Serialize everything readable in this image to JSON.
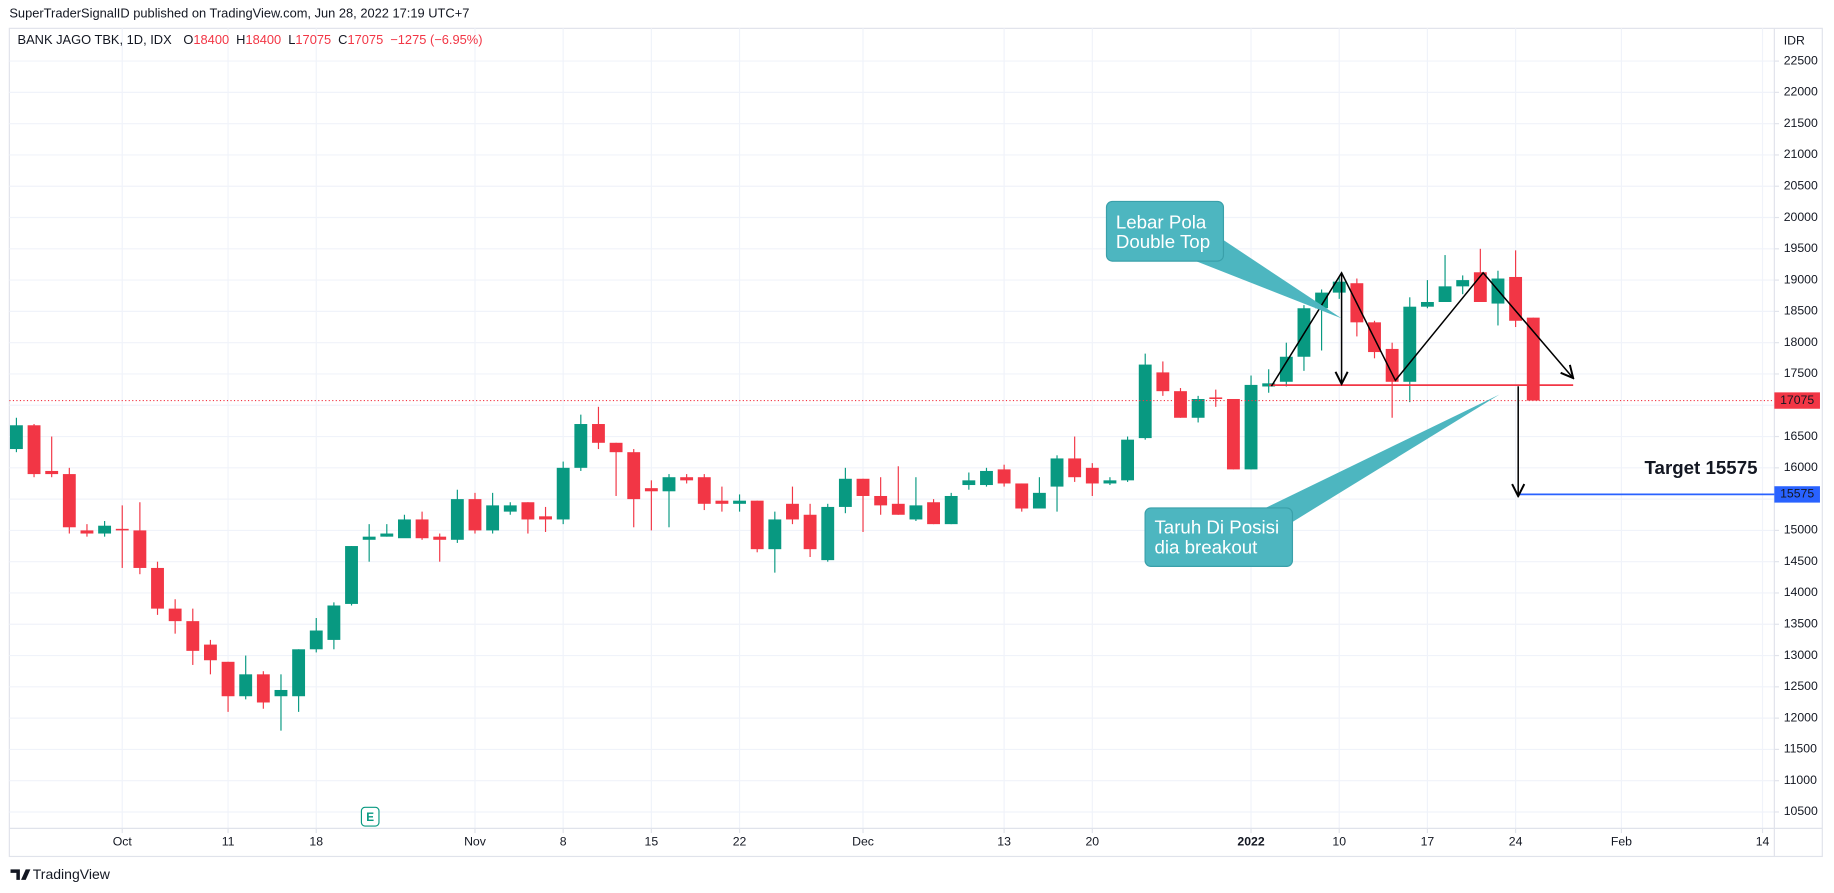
{
  "header": {
    "attribution": "SuperTraderSignalID published on TradingView.com, Jun 28, 2022 17:19 UTC+7",
    "footer_logo": "TradingView"
  },
  "chart_data": {
    "type": "candlestick",
    "title": "BANK JAGO TBK, 1D, IDX",
    "ohlc_legend": [
      {
        "key": "O",
        "value": "18400"
      },
      {
        "key": "H",
        "value": "18400"
      },
      {
        "key": "L",
        "value": "17075"
      },
      {
        "key": "C",
        "value": "17075"
      }
    ],
    "change": "−1275 (−6.95%)",
    "currency": "IDR",
    "earnings_marker": "E",
    "up_color": "#089981",
    "down_color": "#f23645",
    "categories": [
      null,
      null,
      null,
      null,
      null,
      null,
      null,
      null,
      null,
      null,
      null,
      null,
      null,
      null,
      null,
      null,
      null,
      null,
      null,
      null,
      null,
      null,
      null,
      null,
      null,
      null,
      null,
      null,
      null,
      null,
      null,
      null,
      null,
      null,
      null,
      null,
      null,
      null,
      null,
      null,
      null,
      null,
      null,
      null,
      null,
      null,
      null,
      null,
      null,
      null,
      null,
      null,
      null,
      null,
      null,
      null,
      null,
      null,
      null,
      null,
      null,
      null,
      null,
      null,
      null,
      null,
      null,
      null,
      null,
      null,
      null,
      null,
      null,
      null,
      null,
      null,
      null,
      null,
      null,
      null,
      null,
      null,
      null,
      null,
      null,
      null,
      null
    ],
    "open": [
      16300,
      16680,
      15950,
      15900,
      15000,
      14950,
      15025,
      15000,
      14400,
      13750,
      13550,
      13175,
      12900,
      12350,
      12700,
      12350,
      12350,
      13100,
      13250,
      13825,
      14850,
      14900,
      14875,
      15175,
      14900,
      14850,
      15500,
      15000,
      15300,
      15450,
      15225,
      15175,
      16000,
      16700,
      16400,
      16250,
      15675,
      15625,
      15850,
      15850,
      15475,
      15425,
      15475,
      14700,
      15425,
      15250,
      14525,
      15375,
      15825,
      15550,
      15425,
      15175,
      15450,
      15100,
      15725,
      15725,
      15975,
      15750,
      15350,
      15700,
      16150,
      16000,
      15750,
      15800,
      16475,
      17525,
      17225,
      16800,
      17125,
      17100,
      15975,
      17300,
      17375,
      17775,
      18550,
      18800,
      18950,
      18325,
      17900,
      17375,
      18575,
      18650,
      18900,
      19125,
      18625,
      19050,
      18400
    ],
    "high": [
      16800,
      16700,
      16500,
      16000,
      15100,
      15150,
      15400,
      15450,
      14500,
      13900,
      13750,
      13250,
      12900,
      13000,
      12750,
      12700,
      13100,
      13600,
      13850,
      14750,
      15100,
      15100,
      15250,
      15300,
      14950,
      15650,
      15600,
      15600,
      15450,
      15450,
      15375,
      16100,
      16850,
      16975,
      16400,
      16300,
      15800,
      15900,
      15900,
      15900,
      15700,
      15575,
      15475,
      15300,
      15700,
      15425,
      15425,
      16000,
      15825,
      15850,
      16025,
      15850,
      15500,
      15600,
      15925,
      16000,
      16050,
      15750,
      15850,
      16200,
      16500,
      16075,
      15850,
      16500,
      17825,
      17700,
      17275,
      17150,
      17250,
      17100,
      17475,
      17575,
      18000,
      18600,
      18850,
      19050,
      19025,
      18350,
      18000,
      18725,
      19000,
      19400,
      19075,
      19500,
      19150,
      19475,
      18400
    ],
    "low": [
      16250,
      15850,
      15850,
      14950,
      14900,
      14900,
      14400,
      14300,
      13650,
      13350,
      12850,
      12700,
      12100,
      12300,
      12150,
      11800,
      12100,
      13050,
      13100,
      13800,
      14500,
      14900,
      14900,
      14850,
      14500,
      14800,
      14950,
      14950,
      15250,
      14950,
      14975,
      15100,
      15950,
      16300,
      15550,
      15050,
      15000,
      15050,
      15750,
      15325,
      15300,
      15300,
      14650,
      14325,
      15100,
      14575,
      14500,
      15275,
      14975,
      15250,
      15250,
      15150,
      15100,
      15100,
      15650,
      15700,
      15700,
      15300,
      15350,
      15300,
      15775,
      15550,
      15725,
      15775,
      16450,
      17150,
      16800,
      16725,
      16975,
      15975,
      15975,
      17200,
      17300,
      17550,
      17875,
      18700,
      18100,
      17750,
      16800,
      17050,
      18550,
      18650,
      18775,
      18650,
      18275,
      18250,
      17075
    ],
    "close": [
      16680,
      15900,
      15900,
      15050,
      14950,
      15075,
      15000,
      14400,
      13750,
      13550,
      13075,
      12925,
      12350,
      12700,
      12250,
      12450,
      13100,
      13400,
      13800,
      14750,
      14900,
      14950,
      15175,
      14875,
      14850,
      15500,
      15000,
      15400,
      15400,
      15175,
      15175,
      16000,
      16700,
      16400,
      16250,
      15500,
      15625,
      15850,
      15800,
      15425,
      15425,
      15475,
      14700,
      15175,
      15175,
      14700,
      15375,
      15825,
      15550,
      15400,
      15250,
      15400,
      15100,
      15550,
      15800,
      15950,
      15750,
      15350,
      15600,
      16150,
      15850,
      15750,
      15800,
      16450,
      17650,
      17225,
      16800,
      17100,
      17100,
      15975,
      17325,
      17350,
      17775,
      18550,
      18800,
      18975,
      18325,
      17850,
      17375,
      18575,
      18650,
      18900,
      19000,
      18650,
      19025,
      18350,
      17075
    ],
    "xlim": [
      -0.4,
      99.67
    ],
    "xticks": [
      {
        "value": 6,
        "label": "Oct"
      },
      {
        "value": 12,
        "label": "11"
      },
      {
        "value": 17,
        "label": "18"
      },
      {
        "value": 26,
        "label": "Nov"
      },
      {
        "value": 31,
        "label": "8"
      },
      {
        "value": 36,
        "label": "15"
      },
      {
        "value": 41,
        "label": "22"
      },
      {
        "value": 48,
        "label": "Dec"
      },
      {
        "value": 56,
        "label": "13"
      },
      {
        "value": 61,
        "label": "20"
      },
      {
        "value": 70,
        "label": "2022",
        "bold": true
      },
      {
        "value": 75,
        "label": "10"
      },
      {
        "value": 80,
        "label": "17"
      },
      {
        "value": 85,
        "label": "24"
      },
      {
        "value": 91,
        "label": "Feb"
      },
      {
        "value": 99,
        "label": "14"
      }
    ],
    "ylim": [
      10238,
      23023
    ],
    "yticks": [
      10500,
      11000,
      11500,
      12000,
      12500,
      13000,
      13500,
      14000,
      14500,
      15000,
      15500,
      16000,
      16500,
      17000,
      17500,
      18000,
      18500,
      19000,
      19500,
      20000,
      20500,
      21000,
      21500,
      22000,
      22500
    ],
    "grid": true,
    "price_lines": [
      {
        "value": 17075,
        "color": "#f23645",
        "style": "dotted"
      },
      {
        "value": 15575,
        "color": "#2962ff",
        "style": "solid"
      }
    ],
    "annotations": [
      {
        "lines": [
          "Lebar Pola",
          "Double Top"
        ]
      },
      {
        "lines": [
          "Taruh Di Posisi",
          "dia breakout"
        ]
      },
      {
        "text": "Target 15575"
      }
    ]
  }
}
